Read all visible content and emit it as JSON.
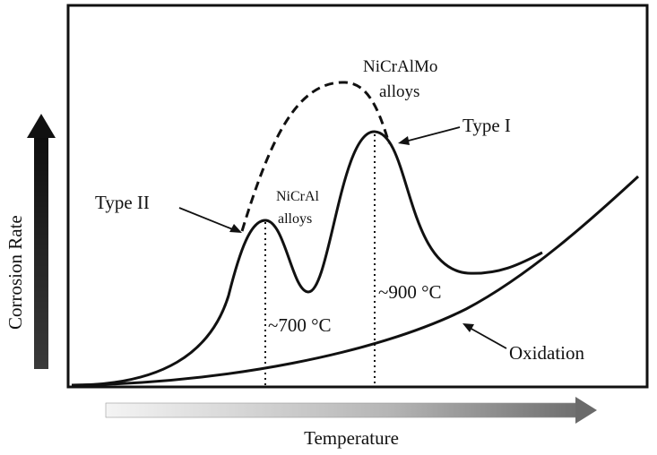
{
  "axes": {
    "x_label": "Temperature",
    "y_label": "Corrosion Rate"
  },
  "labels": {
    "nicralmo_line1": "NiCrAlMo",
    "nicralmo_line2": "alloys",
    "type1": "Type I",
    "type2": "Type II",
    "nicral_line1": "NiCrAl",
    "nicral_line2": "alloys",
    "temp_700": "~700 °C",
    "temp_900": "~900 °C",
    "oxidation": "Oxidation"
  },
  "colors": {
    "curve": "#111111",
    "arrow_dark": "#222222",
    "arrow_light": "#f2f2f2"
  }
}
